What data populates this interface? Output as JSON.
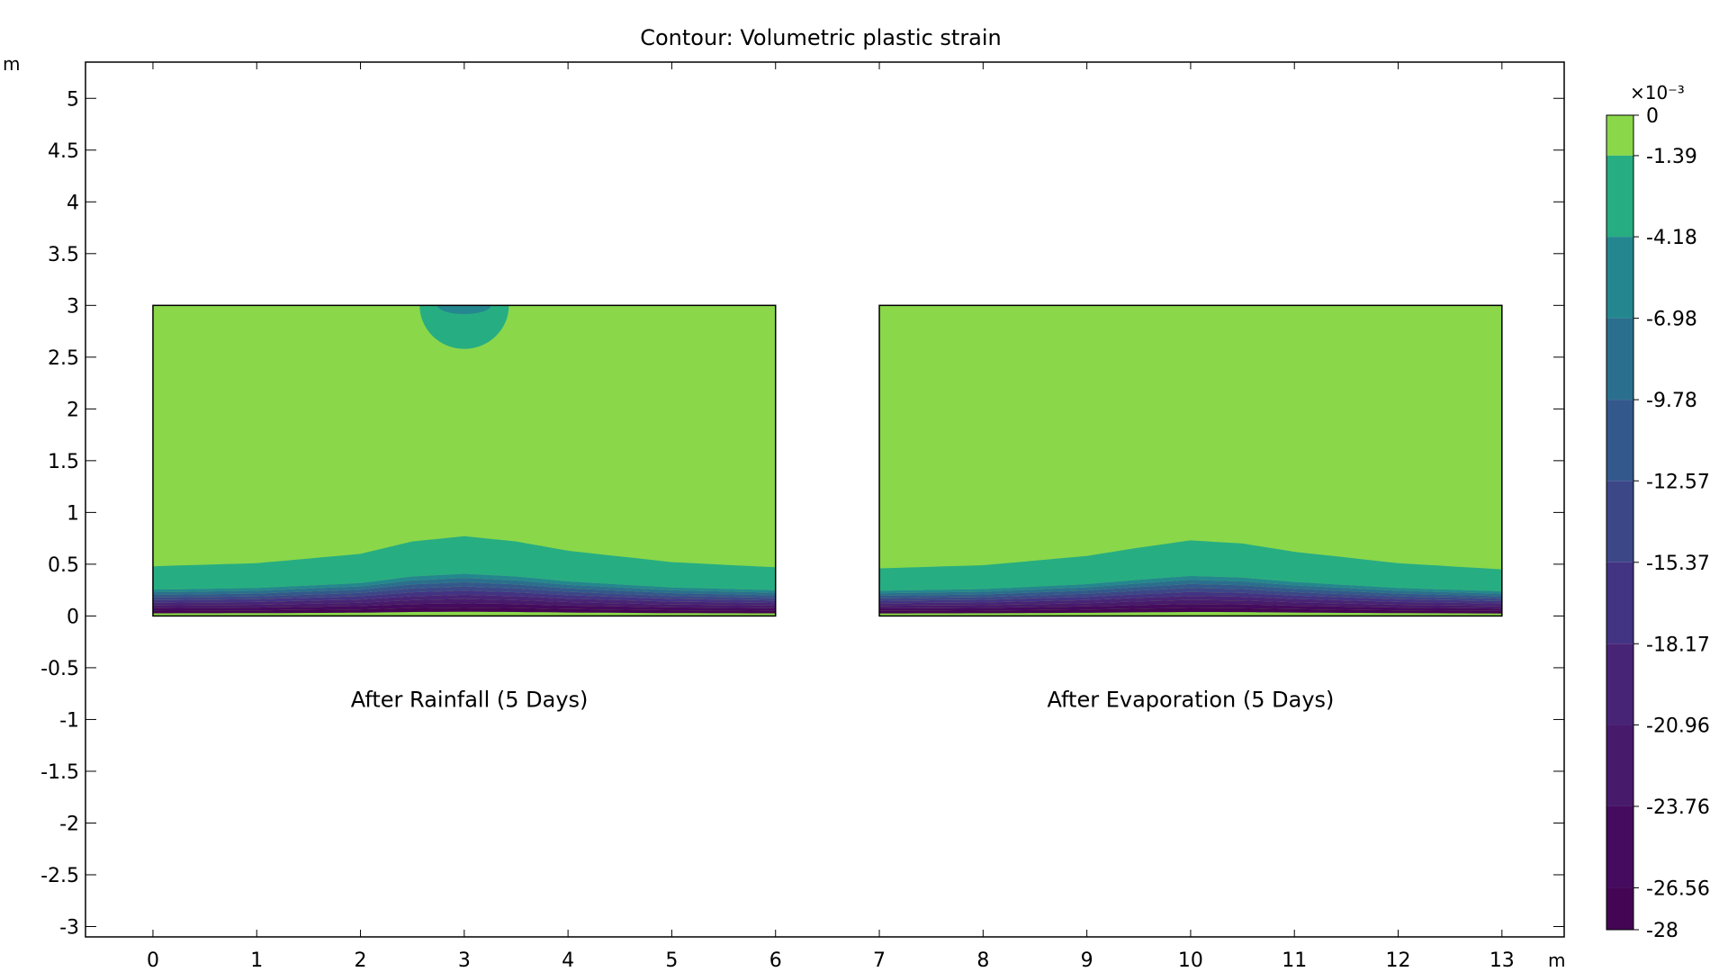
{
  "chart_data": {
    "type": "contour",
    "title": "Contour: Volumetric plastic strain",
    "xlabel": "m",
    "ylabel": "m",
    "xlim": [
      -0.65,
      13.6
    ],
    "ylim": [
      -3.1,
      5.35
    ],
    "x_ticks": [
      0,
      1,
      2,
      3,
      4,
      5,
      6,
      7,
      8,
      9,
      10,
      11,
      12,
      13
    ],
    "y_ticks": [
      -3,
      -2.5,
      -2,
      -1.5,
      -1,
      -0.5,
      0,
      0.5,
      1,
      1.5,
      2,
      2.5,
      3,
      3.5,
      4,
      4.5,
      5
    ],
    "domains": [
      {
        "name": "After Rainfall (5 Days)",
        "label": "After Rainfall (5 Days)",
        "x_range": [
          0,
          6
        ],
        "y_range": [
          0,
          3
        ],
        "label_position": [
          3.05,
          -0.88
        ],
        "strained_zone_top": [
          [
            0,
            0.48
          ],
          [
            1,
            0.51
          ],
          [
            2,
            0.6
          ],
          [
            2.5,
            0.72
          ],
          [
            3,
            0.77
          ],
          [
            3.5,
            0.72
          ],
          [
            4,
            0.63
          ],
          [
            5,
            0.52
          ],
          [
            6,
            0.47
          ]
        ],
        "surface_bulb": {
          "center_x": 3.0,
          "half_width": 0.43,
          "depth": 0.42
        }
      },
      {
        "name": "After Evaporation (5 Days)",
        "label": "After Evaporation (5 Days)",
        "x_range": [
          7,
          13
        ],
        "y_range": [
          0,
          3
        ],
        "label_position": [
          10.0,
          -0.88
        ],
        "strained_zone_top": [
          [
            7,
            0.46
          ],
          [
            8,
            0.49
          ],
          [
            9,
            0.58
          ],
          [
            9.5,
            0.66
          ],
          [
            10,
            0.73
          ],
          [
            10.5,
            0.7
          ],
          [
            11,
            0.62
          ],
          [
            12,
            0.51
          ],
          [
            13,
            0.45
          ]
        ]
      }
    ],
    "colorbar": {
      "exponent_label": "×10⁻³",
      "min": -28,
      "max": 0,
      "tick_values": [
        0,
        -1.39,
        -4.18,
        -6.98,
        -9.78,
        -12.57,
        -15.37,
        -18.17,
        -20.96,
        -23.76,
        -26.56,
        -28
      ],
      "tick_labels": [
        "0",
        "-1.39",
        "-4.18",
        "-6.98",
        "-9.78",
        "-12.57",
        "-15.37",
        "-18.17",
        "-20.96",
        "-23.76",
        "-26.56",
        "-28"
      ],
      "levels": [
        {
          "from": 0,
          "to": -1.39,
          "color": "#8ad74a"
        },
        {
          "from": -1.39,
          "to": -4.18,
          "color": "#27ad82"
        },
        {
          "from": -4.18,
          "to": -6.98,
          "color": "#24878f"
        },
        {
          "from": -6.98,
          "to": -9.78,
          "color": "#2b6f8e"
        },
        {
          "from": -9.78,
          "to": -12.57,
          "color": "#33598c"
        },
        {
          "from": -12.57,
          "to": -15.37,
          "color": "#3c4788"
        },
        {
          "from": -15.37,
          "to": -18.17,
          "color": "#433383"
        },
        {
          "from": -18.17,
          "to": -20.96,
          "color": "#482476"
        },
        {
          "from": -20.96,
          "to": -23.76,
          "color": "#481a6c"
        },
        {
          "from": -23.76,
          "to": -26.56,
          "color": "#450b5e"
        },
        {
          "from": -26.56,
          "to": -28,
          "color": "#440654"
        }
      ]
    }
  }
}
